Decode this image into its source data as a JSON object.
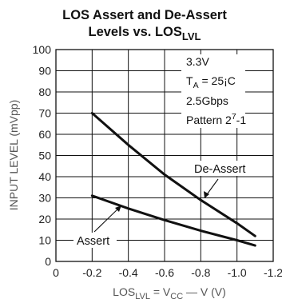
{
  "chart_data": {
    "type": "line",
    "title_line1": "LOS Assert and De-Assert",
    "title_line2_main": "Levels vs. LOS",
    "title_line2_sub": "LVL",
    "ylabel": "INPUT LEVEL (mVpp)",
    "xlabel": {
      "p1": "LOS",
      "p1_sub": "LVL",
      "p2": " = V",
      "p2_sub": "CC",
      "p3": " — V (V)"
    },
    "xlim": [
      0,
      -1.2
    ],
    "ylim": [
      0,
      100
    ],
    "x_ticks": [
      "0",
      "-0.2",
      "-0.4",
      "-0.6",
      "-0.8",
      "-1.0",
      "-1.2"
    ],
    "y_ticks": [
      "0",
      "10",
      "20",
      "30",
      "40",
      "50",
      "60",
      "70",
      "80",
      "90",
      "100"
    ],
    "grid": true,
    "annotations": {
      "voltage": "3.3V",
      "temp_main": "T",
      "temp_sub": "A",
      "temp_rest": " = 25¡C",
      "rate": "2.5Gbps",
      "pattern_main": "Pattern 2",
      "pattern_sup": "7",
      "pattern_rest": "-1"
    },
    "series": [
      {
        "name": "De-Assert",
        "x": [
          -0.2,
          -0.4,
          -0.6,
          -0.8,
          -1.0,
          -1.1
        ],
        "y": [
          70,
          55,
          41,
          29,
          18,
          12
        ]
      },
      {
        "name": "Assert",
        "x": [
          -0.2,
          -0.4,
          -0.6,
          -0.8,
          -1.0,
          -1.1
        ],
        "y": [
          31,
          25,
          19.5,
          14.5,
          10,
          7.5
        ]
      }
    ]
  }
}
